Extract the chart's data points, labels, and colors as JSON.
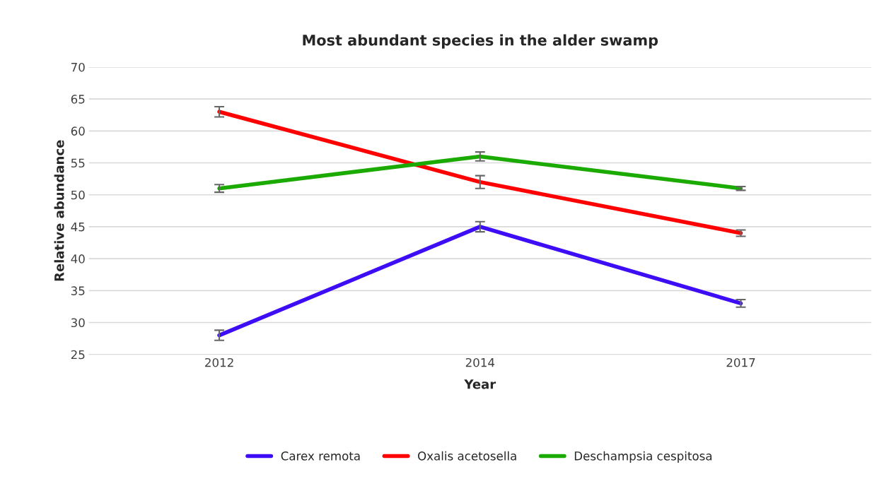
{
  "chart_data": {
    "type": "line",
    "title": "Most abundant species in the alder swamp",
    "xlabel": "Year",
    "ylabel": "Relative abundance",
    "categories": [
      "2012",
      "2014",
      "2017"
    ],
    "series": [
      {
        "name": "Carex remota",
        "color": "#3c0df5",
        "values": [
          28,
          45,
          33
        ],
        "errors": [
          0.8,
          0.8,
          0.6
        ]
      },
      {
        "name": "Oxalis acetosella",
        "color": "#ff0000",
        "values": [
          63,
          52,
          44
        ],
        "errors": [
          0.8,
          1.0,
          0.5
        ]
      },
      {
        "name": "Deschampsia cespitosa",
        "color": "#1aaa00",
        "values": [
          51,
          56,
          51
        ],
        "errors": [
          0.6,
          0.7,
          0.3
        ]
      }
    ],
    "ylim": [
      25,
      70
    ],
    "yticks": [
      25,
      30,
      35,
      40,
      45,
      50,
      55,
      60,
      65,
      70
    ],
    "grid": "y",
    "legend": "bottom",
    "marker": "none",
    "line_style": "solid"
  }
}
